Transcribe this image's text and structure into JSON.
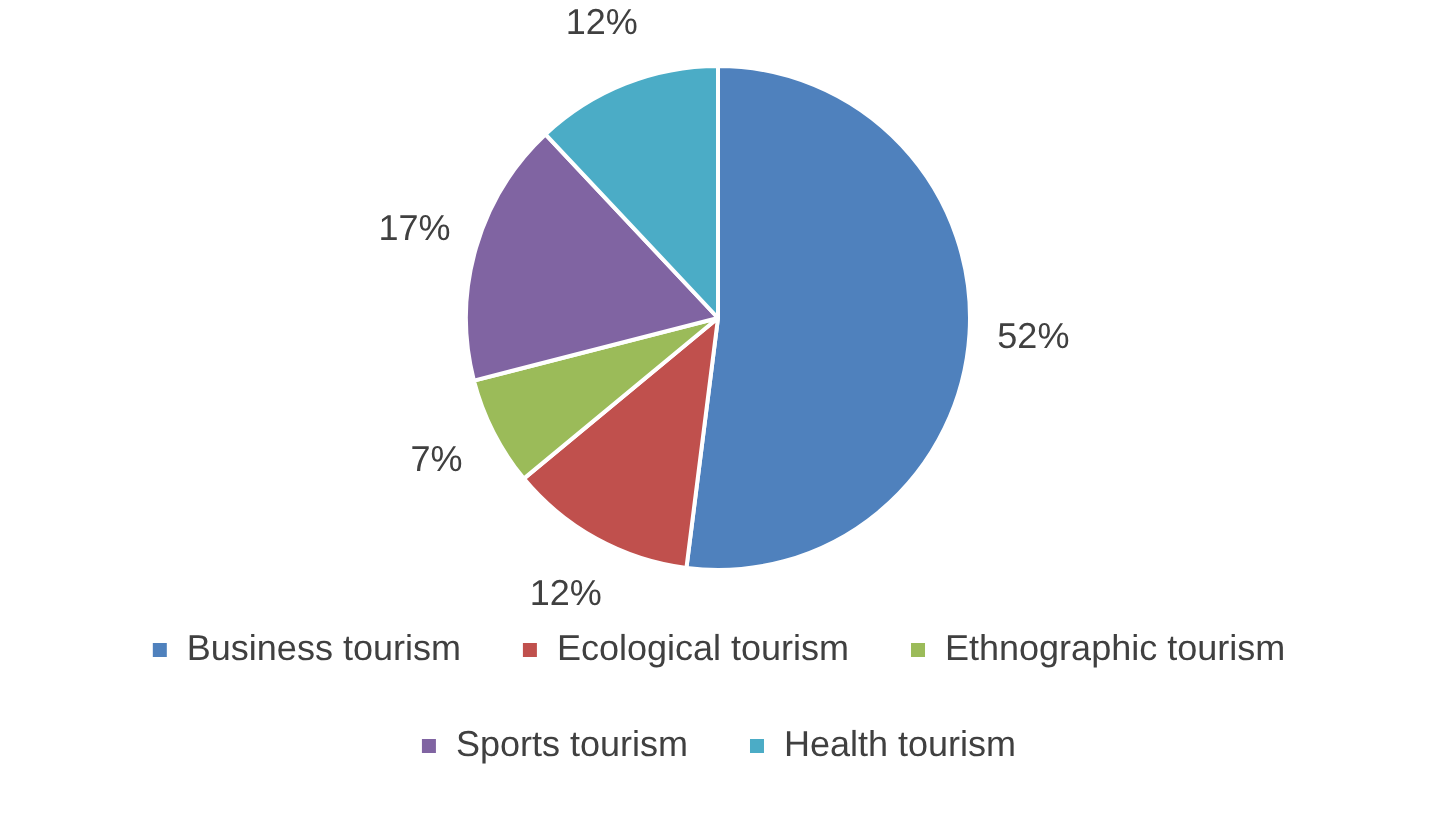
{
  "chart_data": {
    "type": "pie",
    "categories": [
      "Business tourism",
      "Ecological tourism",
      "Ethnographic tourism",
      "Sports tourism",
      "Health tourism"
    ],
    "values": [
      52,
      12,
      7,
      17,
      12
    ],
    "colors": [
      "#4f81bd",
      "#c0504d",
      "#9bbb59",
      "#8064a2",
      "#4bacc6"
    ],
    "value_labels": [
      "52%",
      "12%",
      "7%",
      "17%",
      "12%"
    ],
    "legend": "bottom"
  }
}
